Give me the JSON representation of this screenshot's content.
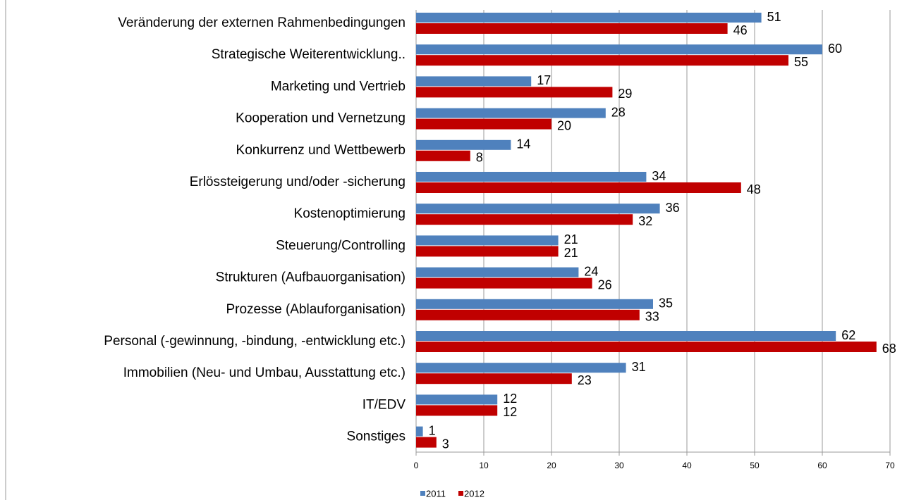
{
  "chart_data": {
    "type": "bar",
    "orientation": "horizontal",
    "categories": [
      "Veränderung der externen Rahmenbedingungen",
      "Strategische Weiterentwicklung..",
      "Marketing und Vertrieb",
      "Kooperation und Vernetzung",
      "Konkurrenz und Wettbewerb",
      "Erlössteigerung und/oder -sicherung",
      "Kostenoptimierung",
      "Steuerung/Controlling",
      "Strukturen (Aufbauorganisation)",
      "Prozesse (Ablauforganisation)",
      "Personal (-gewinnung, -bindung, -entwicklung etc.)",
      "Immobilien (Neu- und Umbau, Ausstattung etc.)",
      "IT/EDV",
      "Sonstiges"
    ],
    "series": [
      {
        "name": "2011",
        "color": "#4f81bd",
        "values": [
          51,
          60,
          17,
          28,
          14,
          34,
          36,
          21,
          24,
          35,
          62,
          31,
          12,
          1
        ]
      },
      {
        "name": "2012",
        "color": "#c00000",
        "values": [
          46,
          55,
          29,
          20,
          8,
          48,
          32,
          21,
          26,
          33,
          68,
          23,
          12,
          3
        ]
      }
    ],
    "xlim": [
      0,
      70
    ],
    "xticks": [
      0,
      10,
      20,
      30,
      40,
      50,
      60,
      70
    ],
    "grid": true,
    "legend": "bottom-left"
  }
}
